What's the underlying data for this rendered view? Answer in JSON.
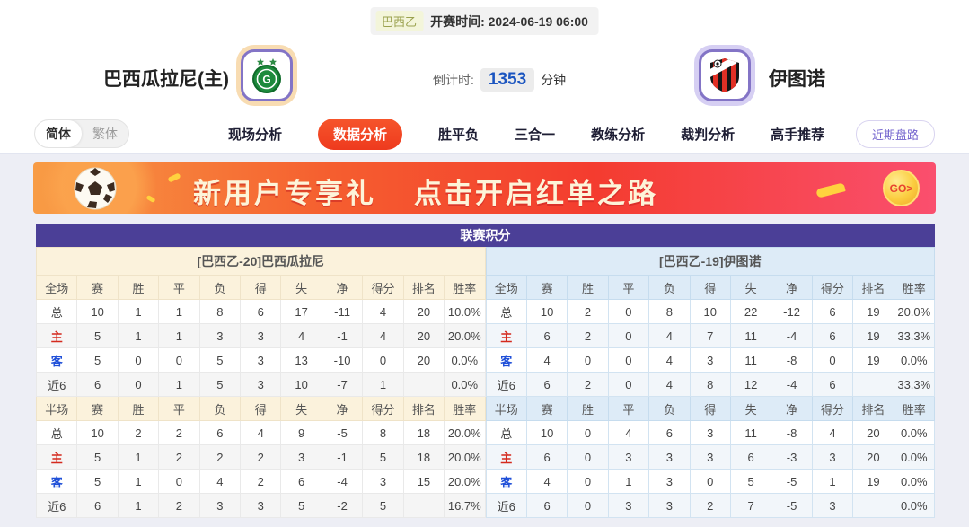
{
  "header": {
    "league_badge": "巴西乙",
    "kickoff_label": "开赛时间:",
    "kickoff_time": "2024-06-19 06:00",
    "home_team": "巴西瓜拉尼(主)",
    "away_team": "伊图诺",
    "countdown_label": "倒计时:",
    "countdown_value": "1353",
    "countdown_unit": "分钟"
  },
  "nav": {
    "lang_simplified": "简体",
    "lang_traditional": "繁体",
    "tabs": [
      "现场分析",
      "数据分析",
      "胜平负",
      "三合一",
      "教练分析",
      "裁判分析",
      "高手推荐"
    ],
    "active_tab": "数据分析",
    "recent_trend_button": "近期盘路"
  },
  "banner": {
    "headline": "新用户专享礼",
    "subline": "点击开启红单之路",
    "go_button": "GO>"
  },
  "league_table": {
    "title": "联赛积分",
    "full_columns": [
      "全场",
      "赛",
      "胜",
      "平",
      "负",
      "得",
      "失",
      "净",
      "得分",
      "排名",
      "胜率"
    ],
    "half_columns": [
      "半场",
      "赛",
      "胜",
      "平",
      "负",
      "得",
      "失",
      "净",
      "得分",
      "排名",
      "胜率"
    ],
    "home": {
      "section_header": "[巴西乙-20]巴西瓜拉尼",
      "full_rows": [
        [
          "总",
          "10",
          "1",
          "1",
          "8",
          "6",
          "17",
          "-11",
          "4",
          "20",
          "10.0%"
        ],
        [
          "主",
          "5",
          "1",
          "1",
          "3",
          "3",
          "4",
          "-1",
          "4",
          "20",
          "20.0%"
        ],
        [
          "客",
          "5",
          "0",
          "0",
          "5",
          "3",
          "13",
          "-10",
          "0",
          "20",
          "0.0%"
        ],
        [
          "近6",
          "6",
          "0",
          "1",
          "5",
          "3",
          "10",
          "-7",
          "1",
          "",
          "0.0%"
        ]
      ],
      "half_rows": [
        [
          "总",
          "10",
          "2",
          "2",
          "6",
          "4",
          "9",
          "-5",
          "8",
          "18",
          "20.0%"
        ],
        [
          "主",
          "5",
          "1",
          "2",
          "2",
          "2",
          "3",
          "-1",
          "5",
          "18",
          "20.0%"
        ],
        [
          "客",
          "5",
          "1",
          "0",
          "4",
          "2",
          "6",
          "-4",
          "3",
          "15",
          "20.0%"
        ],
        [
          "近6",
          "6",
          "1",
          "2",
          "3",
          "3",
          "5",
          "-2",
          "5",
          "",
          "16.7%"
        ]
      ]
    },
    "away": {
      "section_header": "[巴西乙-19]伊图诺",
      "full_rows": [
        [
          "总",
          "10",
          "2",
          "0",
          "8",
          "10",
          "22",
          "-12",
          "6",
          "19",
          "20.0%"
        ],
        [
          "主",
          "6",
          "2",
          "0",
          "4",
          "7",
          "11",
          "-4",
          "6",
          "19",
          "33.3%"
        ],
        [
          "客",
          "4",
          "0",
          "0",
          "4",
          "3",
          "11",
          "-8",
          "0",
          "19",
          "0.0%"
        ],
        [
          "近6",
          "6",
          "2",
          "0",
          "4",
          "8",
          "12",
          "-4",
          "6",
          "",
          "33.3%"
        ]
      ],
      "half_rows": [
        [
          "总",
          "10",
          "0",
          "4",
          "6",
          "3",
          "11",
          "-8",
          "4",
          "20",
          "0.0%"
        ],
        [
          "主",
          "6",
          "0",
          "3",
          "3",
          "3",
          "6",
          "-3",
          "3",
          "20",
          "0.0%"
        ],
        [
          "客",
          "4",
          "0",
          "1",
          "3",
          "0",
          "5",
          "-5",
          "1",
          "19",
          "0.0%"
        ],
        [
          "近6",
          "6",
          "0",
          "3",
          "3",
          "2",
          "7",
          "-5",
          "3",
          "",
          "0.0%"
        ]
      ]
    }
  },
  "colors": {
    "accent_purple": "#4b3f97",
    "active_tab_orange": "#f1481f",
    "home_header_bg": "#fbf2dc",
    "away_header_bg": "#ddebf7",
    "countdown_blue": "#1b55c0",
    "row_label_red": "#d42a1e",
    "row_label_blue": "#1f4fd8"
  }
}
